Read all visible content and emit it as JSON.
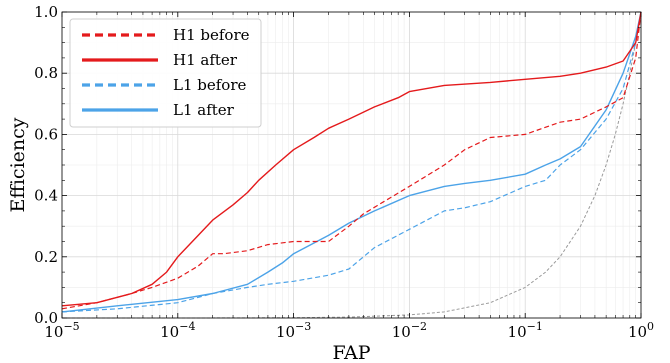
{
  "chart_data": {
    "type": "line",
    "title": "",
    "xlabel": "FAP",
    "ylabel": "Efficiency",
    "xscale": "log",
    "xlim": [
      1e-05,
      1
    ],
    "ylim": [
      0,
      1
    ],
    "x_ticks": [
      {
        "value": 1e-05,
        "base": "10",
        "exp": "−5"
      },
      {
        "value": 0.0001,
        "base": "10",
        "exp": "−4"
      },
      {
        "value": 0.001,
        "base": "10",
        "exp": "−3"
      },
      {
        "value": 0.01,
        "base": "10",
        "exp": "−2"
      },
      {
        "value": 0.1,
        "base": "10",
        "exp": "−1"
      },
      {
        "value": 1,
        "base": "10",
        "exp": "0"
      }
    ],
    "y_ticks": [
      "0.0",
      "0.2",
      "0.4",
      "0.6",
      "0.8",
      "1.0"
    ],
    "grid": true,
    "legend": "top-left",
    "series": [
      {
        "name": "H1 before",
        "color": "#e41a1c",
        "style": "dashed",
        "x": [
          1e-05,
          2e-05,
          4e-05,
          6e-05,
          0.0001,
          0.00015,
          0.0002,
          0.00025,
          0.0004,
          0.0006,
          0.001,
          0.002,
          0.003,
          0.004,
          0.006,
          0.01,
          0.02,
          0.03,
          0.05,
          0.1,
          0.2,
          0.3,
          0.5,
          0.7,
          0.9,
          1
        ],
        "y": [
          0.03,
          0.05,
          0.08,
          0.1,
          0.13,
          0.17,
          0.21,
          0.21,
          0.22,
          0.24,
          0.25,
          0.25,
          0.3,
          0.34,
          0.38,
          0.43,
          0.5,
          0.55,
          0.59,
          0.6,
          0.64,
          0.65,
          0.69,
          0.72,
          0.85,
          1
        ]
      },
      {
        "name": "H1 after",
        "color": "#e41a1c",
        "style": "solid",
        "x": [
          1e-05,
          2e-05,
          4e-05,
          6e-05,
          8e-05,
          0.0001,
          0.00015,
          0.0002,
          0.0003,
          0.0004,
          0.0005,
          0.0007,
          0.001,
          0.0015,
          0.002,
          0.003,
          0.005,
          0.008,
          0.01,
          0.02,
          0.05,
          0.1,
          0.2,
          0.3,
          0.5,
          0.7,
          0.9,
          1
        ],
        "y": [
          0.04,
          0.05,
          0.08,
          0.11,
          0.15,
          0.2,
          0.27,
          0.32,
          0.37,
          0.41,
          0.45,
          0.5,
          0.55,
          0.59,
          0.62,
          0.65,
          0.69,
          0.72,
          0.74,
          0.76,
          0.77,
          0.78,
          0.79,
          0.8,
          0.82,
          0.84,
          0.9,
          1
        ]
      },
      {
        "name": "L1 before",
        "color": "#4ca3e8",
        "style": "dashed",
        "x": [
          1e-05,
          3e-05,
          0.0001,
          0.0002,
          0.0004,
          0.0006,
          0.001,
          0.002,
          0.003,
          0.005,
          0.01,
          0.02,
          0.03,
          0.05,
          0.1,
          0.15,
          0.2,
          0.3,
          0.5,
          0.7,
          0.9,
          1
        ],
        "y": [
          0.02,
          0.03,
          0.05,
          0.08,
          0.1,
          0.11,
          0.12,
          0.14,
          0.16,
          0.23,
          0.29,
          0.35,
          0.36,
          0.38,
          0.43,
          0.45,
          0.5,
          0.55,
          0.65,
          0.75,
          0.9,
          1
        ]
      },
      {
        "name": "L1 after",
        "color": "#4ca3e8",
        "style": "solid",
        "x": [
          1e-05,
          3e-05,
          0.0001,
          0.0002,
          0.0004,
          0.0006,
          0.0008,
          0.001,
          0.002,
          0.003,
          0.005,
          0.01,
          0.02,
          0.03,
          0.05,
          0.1,
          0.15,
          0.2,
          0.3,
          0.5,
          0.7,
          0.9,
          1
        ],
        "y": [
          0.02,
          0.04,
          0.06,
          0.08,
          0.11,
          0.15,
          0.18,
          0.21,
          0.27,
          0.31,
          0.35,
          0.4,
          0.43,
          0.44,
          0.45,
          0.47,
          0.5,
          0.52,
          0.56,
          0.68,
          0.8,
          0.92,
          1
        ]
      },
      {
        "name": "",
        "color": "#9a9a9a",
        "style": "dotted",
        "x": [
          1e-05,
          3e-05,
          0.0001,
          0.0003,
          0.001,
          0.003,
          0.01,
          0.02,
          0.05,
          0.1,
          0.15,
          0.2,
          0.3,
          0.4,
          0.5,
          0.6,
          0.7,
          0.8,
          0.9,
          1
        ],
        "y": [
          1e-05,
          3e-05,
          0.0001,
          0.0003,
          0.001,
          0.003,
          0.01,
          0.02,
          0.05,
          0.1,
          0.15,
          0.2,
          0.3,
          0.4,
          0.5,
          0.6,
          0.7,
          0.8,
          0.9,
          1
        ]
      }
    ]
  }
}
